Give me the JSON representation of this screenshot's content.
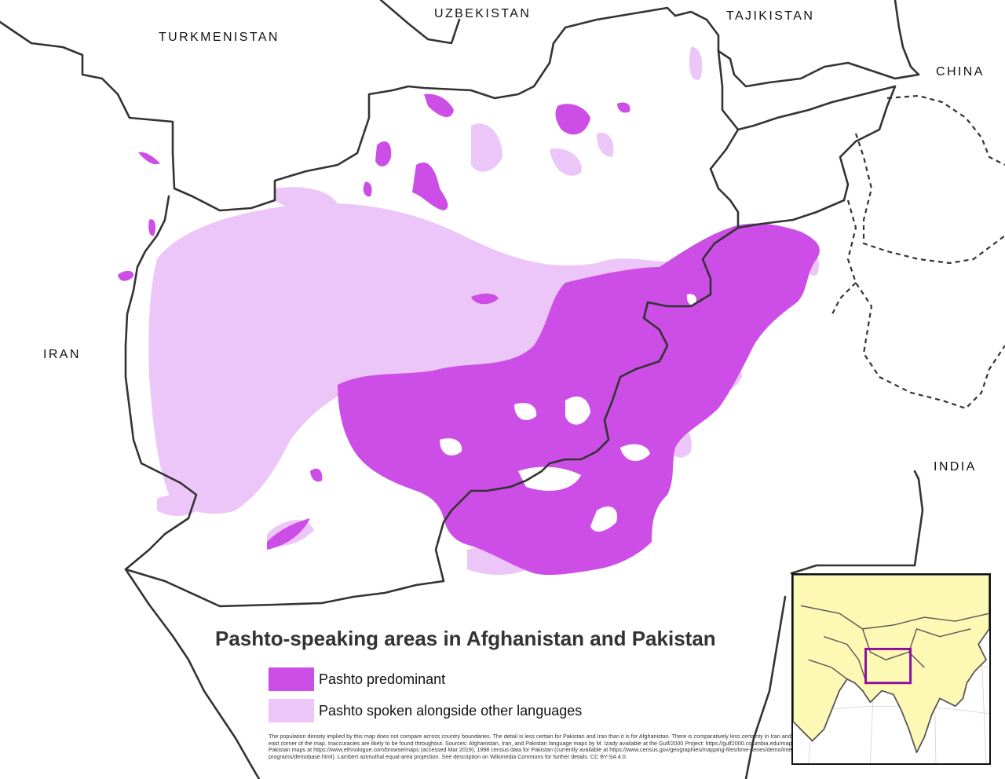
{
  "title": "Pashto-speaking areas in Afghanistan and Pakistan",
  "countries": {
    "turkmenistan": "TURKMENISTAN",
    "uzbekistan": "UZBEKISTAN",
    "tajikistan": "TAJIKISTAN",
    "china": "CHINA",
    "iran": "IRAN",
    "india": "INDIA"
  },
  "legend": [
    {
      "label": "Pashto predominant",
      "color": "#cc4ee6"
    },
    {
      "label": "Pashto spoken alongside other languages",
      "color": "#ecc6f8"
    }
  ],
  "credits": "The population density implied by this map does not compare across country boundaries. The detail is less certain for Pakistan and Iran than it is for Afghanistan. There is comparatively less certainty in Iran and in the south-east corner of the map. Inaccuracies are likely to be found throughout. Sources: Afghanistan, Iran, and Pakistan language maps by M. Izady available at the Gulf/2000 Project: https://gulf2000.columbia.edu/maps.shtml; Pakistan maps at https://www.ethnologue.com/browse/maps (accessed Mar 2019); 1998 census data for Pakistan (currently available at https://www.census.gov/geographies/mapping-files/time-series/demo/international-programs/demobase.html). Lambert azimuthal equal-area projection. See description on Wikimedia Commons for further details. CC BY-SA 4.0.",
  "colors": {
    "predominant": "#cc4ee6",
    "alongside": "#ecc6f8",
    "border": "#333333",
    "inset_land": "#fdf8b4",
    "inset_highlight": "#8c0fa0"
  }
}
